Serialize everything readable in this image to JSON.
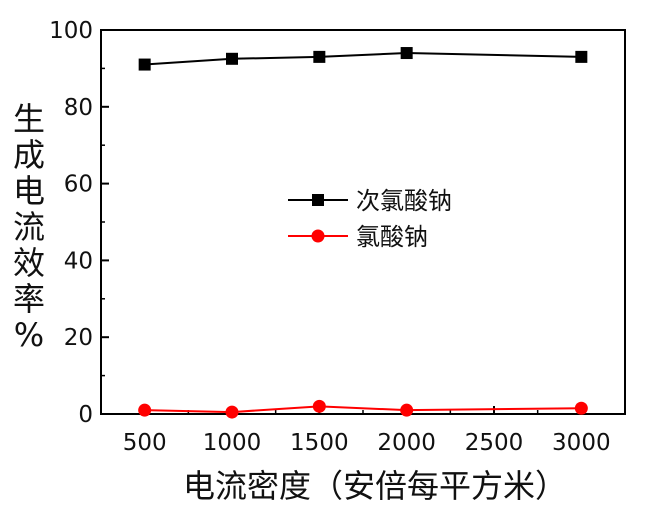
{
  "chart_data": {
    "type": "line",
    "title": "",
    "xlabel": "电流密度（安倍每平方米）",
    "ylabel": "生成电流效率%",
    "x": [
      500,
      1000,
      1500,
      2000,
      3000
    ],
    "xlim": [
      250,
      3250
    ],
    "ylim": [
      0,
      100
    ],
    "xticks": [
      500,
      1000,
      1500,
      2000,
      2500,
      3000
    ],
    "yticks": [
      0,
      20,
      40,
      60,
      80,
      100
    ],
    "grid": false,
    "legend_position": "center",
    "series": [
      {
        "name": "次氯酸钠",
        "values": [
          91,
          92.5,
          93,
          94,
          93
        ],
        "color": "#000000",
        "marker": "square"
      },
      {
        "name": "氯酸钠",
        "values": [
          1,
          0.5,
          2,
          1,
          1.5
        ],
        "color": "#ff0000",
        "marker": "circle"
      }
    ]
  }
}
